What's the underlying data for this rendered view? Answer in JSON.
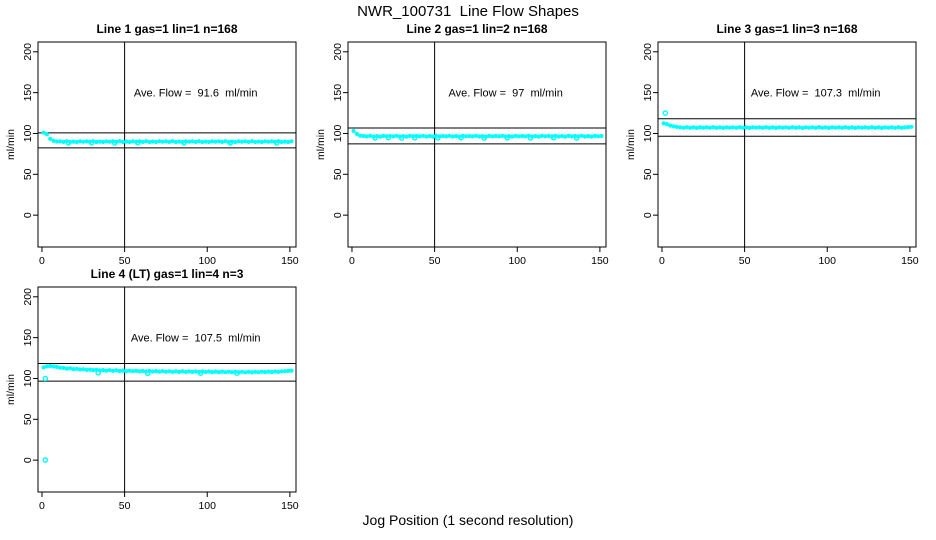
{
  "title": "NWR_100731  Line Flow Shapes",
  "xlabel": "Jog Position (1 second resolution)",
  "colors": {
    "points": "#00FFFF",
    "axis": "#000000",
    "background": "#FFFFFF",
    "text": "#000000"
  },
  "chart_data": [
    {
      "type": "scatter",
      "title": "Line 1 gas=1 lin=1 n=168",
      "annotation": "Ave. Flow =  91.6  ml/min",
      "ave_flow": 91.6,
      "ylabel": "ml/min",
      "x_ticks": [
        0,
        50,
        100,
        150
      ],
      "y_ticks": [
        0,
        50,
        100,
        150,
        200
      ],
      "x_range": [
        -2.4,
        153.7
      ],
      "y_range": [
        -39,
        212
      ],
      "vline_x": 50,
      "hlines": [
        100.8,
        82.4
      ],
      "x_start": 1,
      "x_step": 2,
      "y_values": [
        101.0,
        99.0,
        93.5,
        91.0,
        90.2,
        90.3,
        89.7,
        90.5,
        89.6,
        90.1,
        89.5,
        90.4,
        89.9,
        90.3,
        89.7,
        90.5,
        89.6,
        90.1,
        89.5,
        90.4,
        89.9,
        90.3,
        89.7,
        90.5,
        89.6,
        90.1,
        89.5,
        90.4,
        89.9,
        90.3,
        89.7,
        90.5,
        89.6,
        90.1,
        89.5,
        90.4,
        89.9,
        90.3,
        89.7,
        90.5,
        89.6,
        90.1,
        89.5,
        90.4,
        89.9,
        90.3,
        89.7,
        90.5,
        89.6,
        90.1,
        89.5,
        90.4,
        89.9,
        90.3,
        89.7,
        90.5,
        89.6,
        90.1,
        89.5,
        90.4,
        89.9,
        90.3,
        89.7,
        90.5,
        89.6,
        90.1,
        89.5,
        90.4,
        89.9,
        90.3,
        89.7,
        90.5,
        89.6,
        90.1,
        89.5,
        90.4
      ],
      "extra_points": [
        [
          16,
          88.4
        ],
        [
          30,
          88.6
        ],
        [
          44,
          88.3
        ],
        [
          58,
          88.6
        ],
        [
          86,
          88.4
        ],
        [
          114,
          88.5
        ],
        [
          142,
          88.3
        ]
      ]
    },
    {
      "type": "scatter",
      "title": "Line 2 gas=1 lin=2 n=168",
      "annotation": "Ave. Flow =  97  ml/min",
      "ave_flow": 97,
      "ylabel": "ml/min",
      "x_ticks": [
        0,
        50,
        100,
        150
      ],
      "y_ticks": [
        0,
        50,
        100,
        150,
        200
      ],
      "x_range": [
        -2.4,
        153.7
      ],
      "y_range": [
        -39,
        212
      ],
      "vline_x": 50,
      "hlines": [
        106.7,
        87.3
      ],
      "x_start": 1,
      "x_step": 2,
      "y_values": [
        103.0,
        99.5,
        97.2,
        96.9,
        96.4,
        97.1,
        96.3,
        96.8,
        96.2,
        97.0,
        96.5,
        96.9,
        96.4,
        97.1,
        96.3,
        96.8,
        96.2,
        97.0,
        96.5,
        96.9,
        96.4,
        97.1,
        96.3,
        96.8,
        96.2,
        97.0,
        96.5,
        96.9,
        96.4,
        97.1,
        96.3,
        96.8,
        96.2,
        97.0,
        96.5,
        96.9,
        96.4,
        97.1,
        96.3,
        96.8,
        96.2,
        97.0,
        96.5,
        96.9,
        96.4,
        97.1,
        96.3,
        96.8,
        96.2,
        97.0,
        96.5,
        96.9,
        96.4,
        97.1,
        96.3,
        96.8,
        96.2,
        97.0,
        96.5,
        96.9,
        96.4,
        97.1,
        96.3,
        96.8,
        96.2,
        97.0,
        96.5,
        96.9,
        96.4,
        97.1,
        96.3,
        96.8,
        96.2,
        97.0,
        96.5,
        96.9
      ],
      "extra_points": [
        [
          14,
          94.6
        ],
        [
          22,
          94.8
        ],
        [
          30,
          94.5
        ],
        [
          38,
          94.7
        ],
        [
          52,
          94.6
        ],
        [
          66,
          94.8
        ],
        [
          80,
          94.5
        ],
        [
          94,
          94.7
        ],
        [
          108,
          94.6
        ],
        [
          122,
          94.8
        ],
        [
          136,
          94.5
        ]
      ]
    },
    {
      "type": "scatter",
      "title": "Line 3 gas=1 lin=3 n=168",
      "annotation": "Ave. Flow =  107.3  ml/min",
      "ave_flow": 107.3,
      "ylabel": "ml/min",
      "x_ticks": [
        0,
        50,
        100,
        150
      ],
      "y_ticks": [
        0,
        50,
        100,
        150,
        200
      ],
      "x_range": [
        -2.4,
        153.7
      ],
      "y_range": [
        -39,
        212
      ],
      "vline_x": 50,
      "hlines": [
        118.0,
        96.6
      ],
      "x_start": 1,
      "x_step": 2,
      "y_values": [
        112.5,
        111.5,
        109.8,
        108.8,
        108.1,
        107.5,
        107.0,
        107.7,
        106.9,
        107.4,
        106.8,
        107.6,
        107.1,
        107.5,
        107.0,
        107.7,
        106.9,
        107.4,
        106.8,
        107.6,
        107.1,
        107.5,
        107.0,
        107.7,
        106.9,
        107.4,
        106.8,
        107.6,
        107.1,
        107.5,
        107.0,
        107.7,
        106.9,
        107.4,
        106.8,
        107.6,
        107.1,
        107.5,
        107.0,
        107.7,
        106.9,
        107.4,
        106.8,
        107.6,
        107.1,
        107.5,
        107.0,
        107.7,
        106.9,
        107.4,
        106.8,
        107.6,
        107.1,
        107.5,
        107.0,
        107.7,
        106.9,
        107.4,
        106.8,
        107.6,
        107.1,
        107.5,
        107.0,
        107.7,
        106.9,
        107.4,
        106.8,
        107.6,
        107.1,
        107.5,
        107.0,
        107.7,
        106.9,
        107.4,
        107.8,
        108.2
      ],
      "extra_points": [
        [
          2,
          125.0
        ]
      ]
    },
    {
      "type": "scatter",
      "title": "Line 4 (LT) gas=1 lin=4 n=3",
      "annotation": "Ave. Flow =  107.5  ml/min",
      "ave_flow": 107.5,
      "ylabel": "ml/min",
      "x_ticks": [
        0,
        50,
        100,
        150
      ],
      "y_ticks": [
        0,
        50,
        100,
        150,
        200
      ],
      "x_range": [
        -2.4,
        153.7
      ],
      "y_range": [
        -39,
        212
      ],
      "vline_x": 50,
      "hlines": [
        118.3,
        96.8
      ],
      "x_start": 1,
      "x_step": 2,
      "y_values": [
        113.5,
        114.8,
        115.3,
        114.6,
        114.2,
        113.2,
        113.0,
        112.1,
        112.4,
        111.5,
        111.8,
        111.0,
        111.3,
        110.6,
        110.9,
        110.2,
        110.6,
        109.9,
        110.3,
        109.7,
        110.1,
        109.4,
        109.9,
        109.2,
        109.7,
        109.0,
        109.5,
        108.9,
        109.4,
        108.7,
        109.2,
        108.6,
        109.1,
        108.5,
        109.0,
        108.4,
        108.9,
        108.3,
        108.8,
        108.2,
        108.7,
        108.1,
        108.7,
        108.0,
        108.6,
        108.0,
        108.6,
        107.9,
        108.5,
        107.9,
        108.5,
        107.8,
        108.4,
        107.8,
        108.4,
        107.7,
        108.3,
        107.7,
        108.3,
        107.7,
        108.2,
        107.6,
        108.2,
        107.6,
        108.2,
        107.7,
        108.3,
        107.8,
        108.4,
        107.9,
        108.6,
        108.1,
        108.8,
        108.9,
        109.3,
        109.6
      ],
      "extra_points": [
        [
          2,
          100.0
        ],
        [
          2,
          0.0
        ],
        [
          34,
          107.0
        ],
        [
          64,
          106.3
        ],
        [
          96,
          106.4
        ],
        [
          118,
          106.5
        ]
      ]
    }
  ]
}
